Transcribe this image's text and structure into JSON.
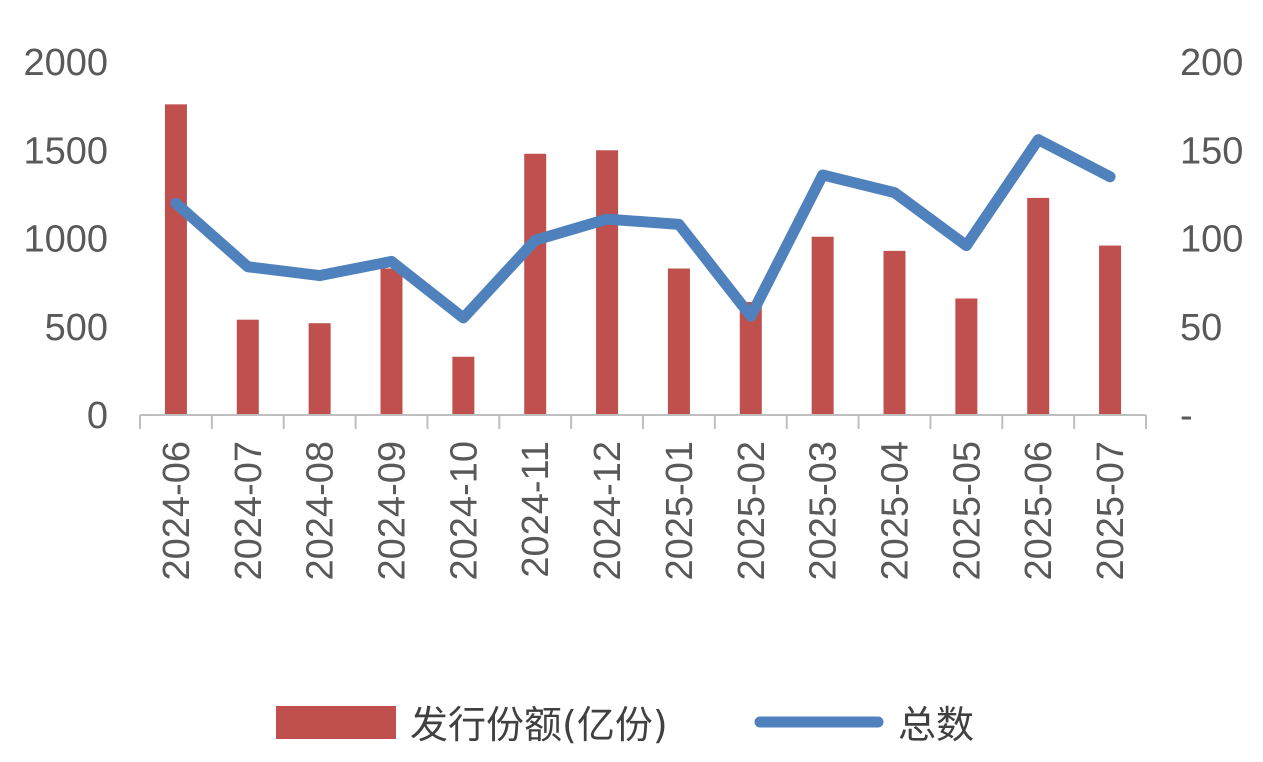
{
  "chart_data": {
    "type": "bar+line",
    "categories": [
      "2024-06",
      "2024-07",
      "2024-08",
      "2024-09",
      "2024-10",
      "2024-11",
      "2024-12",
      "2025-01",
      "2025-02",
      "2025-03",
      "2025-04",
      "2025-05",
      "2025-06",
      "2025-07"
    ],
    "series": [
      {
        "name": "发行份额(亿份)",
        "type": "bar",
        "axis": "left",
        "color": "#c0504d",
        "values": [
          1760,
          540,
          520,
          830,
          330,
          1480,
          1500,
          830,
          640,
          1010,
          930,
          660,
          1230,
          960
        ]
      },
      {
        "name": "总数",
        "type": "line",
        "axis": "right",
        "color": "#4f81bd",
        "values": [
          120,
          84,
          79,
          87,
          55,
          99,
          111,
          108,
          56,
          136,
          126,
          96,
          156,
          135
        ]
      }
    ],
    "y_left": {
      "min": 0,
      "max": 2000,
      "ticks": [
        "0",
        "500",
        "1000",
        "1500",
        "2000"
      ]
    },
    "y_right": {
      "min": 0,
      "max": 200,
      "ticks": [
        "-",
        "50",
        "100",
        "150",
        "200"
      ]
    },
    "grid": false,
    "legend_position": "bottom"
  }
}
